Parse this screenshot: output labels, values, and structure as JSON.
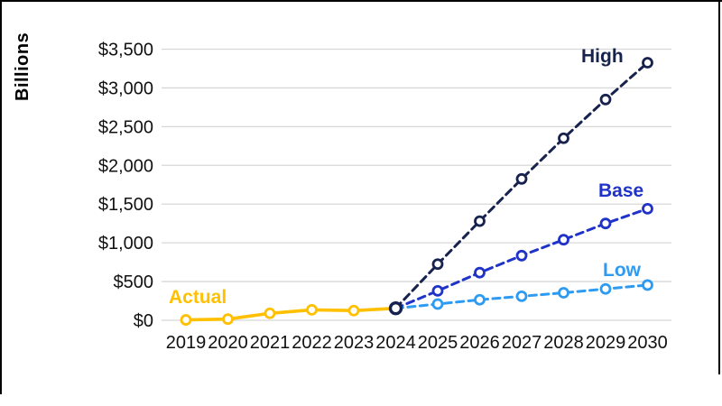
{
  "frame": {
    "border_color": "#000000"
  },
  "chart_data": {
    "type": "line",
    "title": "",
    "ylabel": "Billions",
    "xlabel": "",
    "grid": true,
    "background": "#ffffff",
    "gridline_color": "#d8d8d8",
    "tick_color": "#111111",
    "y_axis": {
      "min": 0,
      "max": 3500,
      "step": 500,
      "tick_labels": [
        "$0",
        "$500",
        "$1,000",
        "$1,500",
        "$2,000",
        "$2,500",
        "$3,000",
        "$3,500"
      ]
    },
    "x_tick_labels": [
      "2019",
      "2020",
      "2021",
      "2022",
      "2023",
      "2024",
      "2025",
      "2026",
      "2027",
      "2028",
      "2029",
      "2030"
    ],
    "junction": {
      "year": 2024,
      "value": 155,
      "color": "#17234E"
    },
    "series": [
      {
        "name": "High",
        "style": "dashed",
        "color": "#17234E",
        "years": [
          2024,
          2025,
          2026,
          2027,
          2028,
          2029,
          2030
        ],
        "values": [
          155,
          725,
          1280,
          1825,
          2350,
          2850,
          3325
        ]
      },
      {
        "name": "Base",
        "style": "dashed",
        "color": "#2033C8",
        "years": [
          2024,
          2025,
          2026,
          2027,
          2028,
          2029,
          2030
        ],
        "values": [
          155,
          380,
          615,
          835,
          1040,
          1250,
          1440
        ]
      },
      {
        "name": "Low",
        "style": "dashed",
        "color": "#2E9BF3",
        "years": [
          2024,
          2025,
          2026,
          2027,
          2028,
          2029,
          2030
        ],
        "values": [
          155,
          210,
          265,
          310,
          355,
          405,
          455
        ]
      },
      {
        "name": "Actual",
        "style": "solid",
        "color": "#FFC000",
        "years": [
          2019,
          2020,
          2021,
          2022,
          2023,
          2024
        ],
        "values": [
          5,
          15,
          90,
          135,
          125,
          155
        ]
      }
    ]
  }
}
